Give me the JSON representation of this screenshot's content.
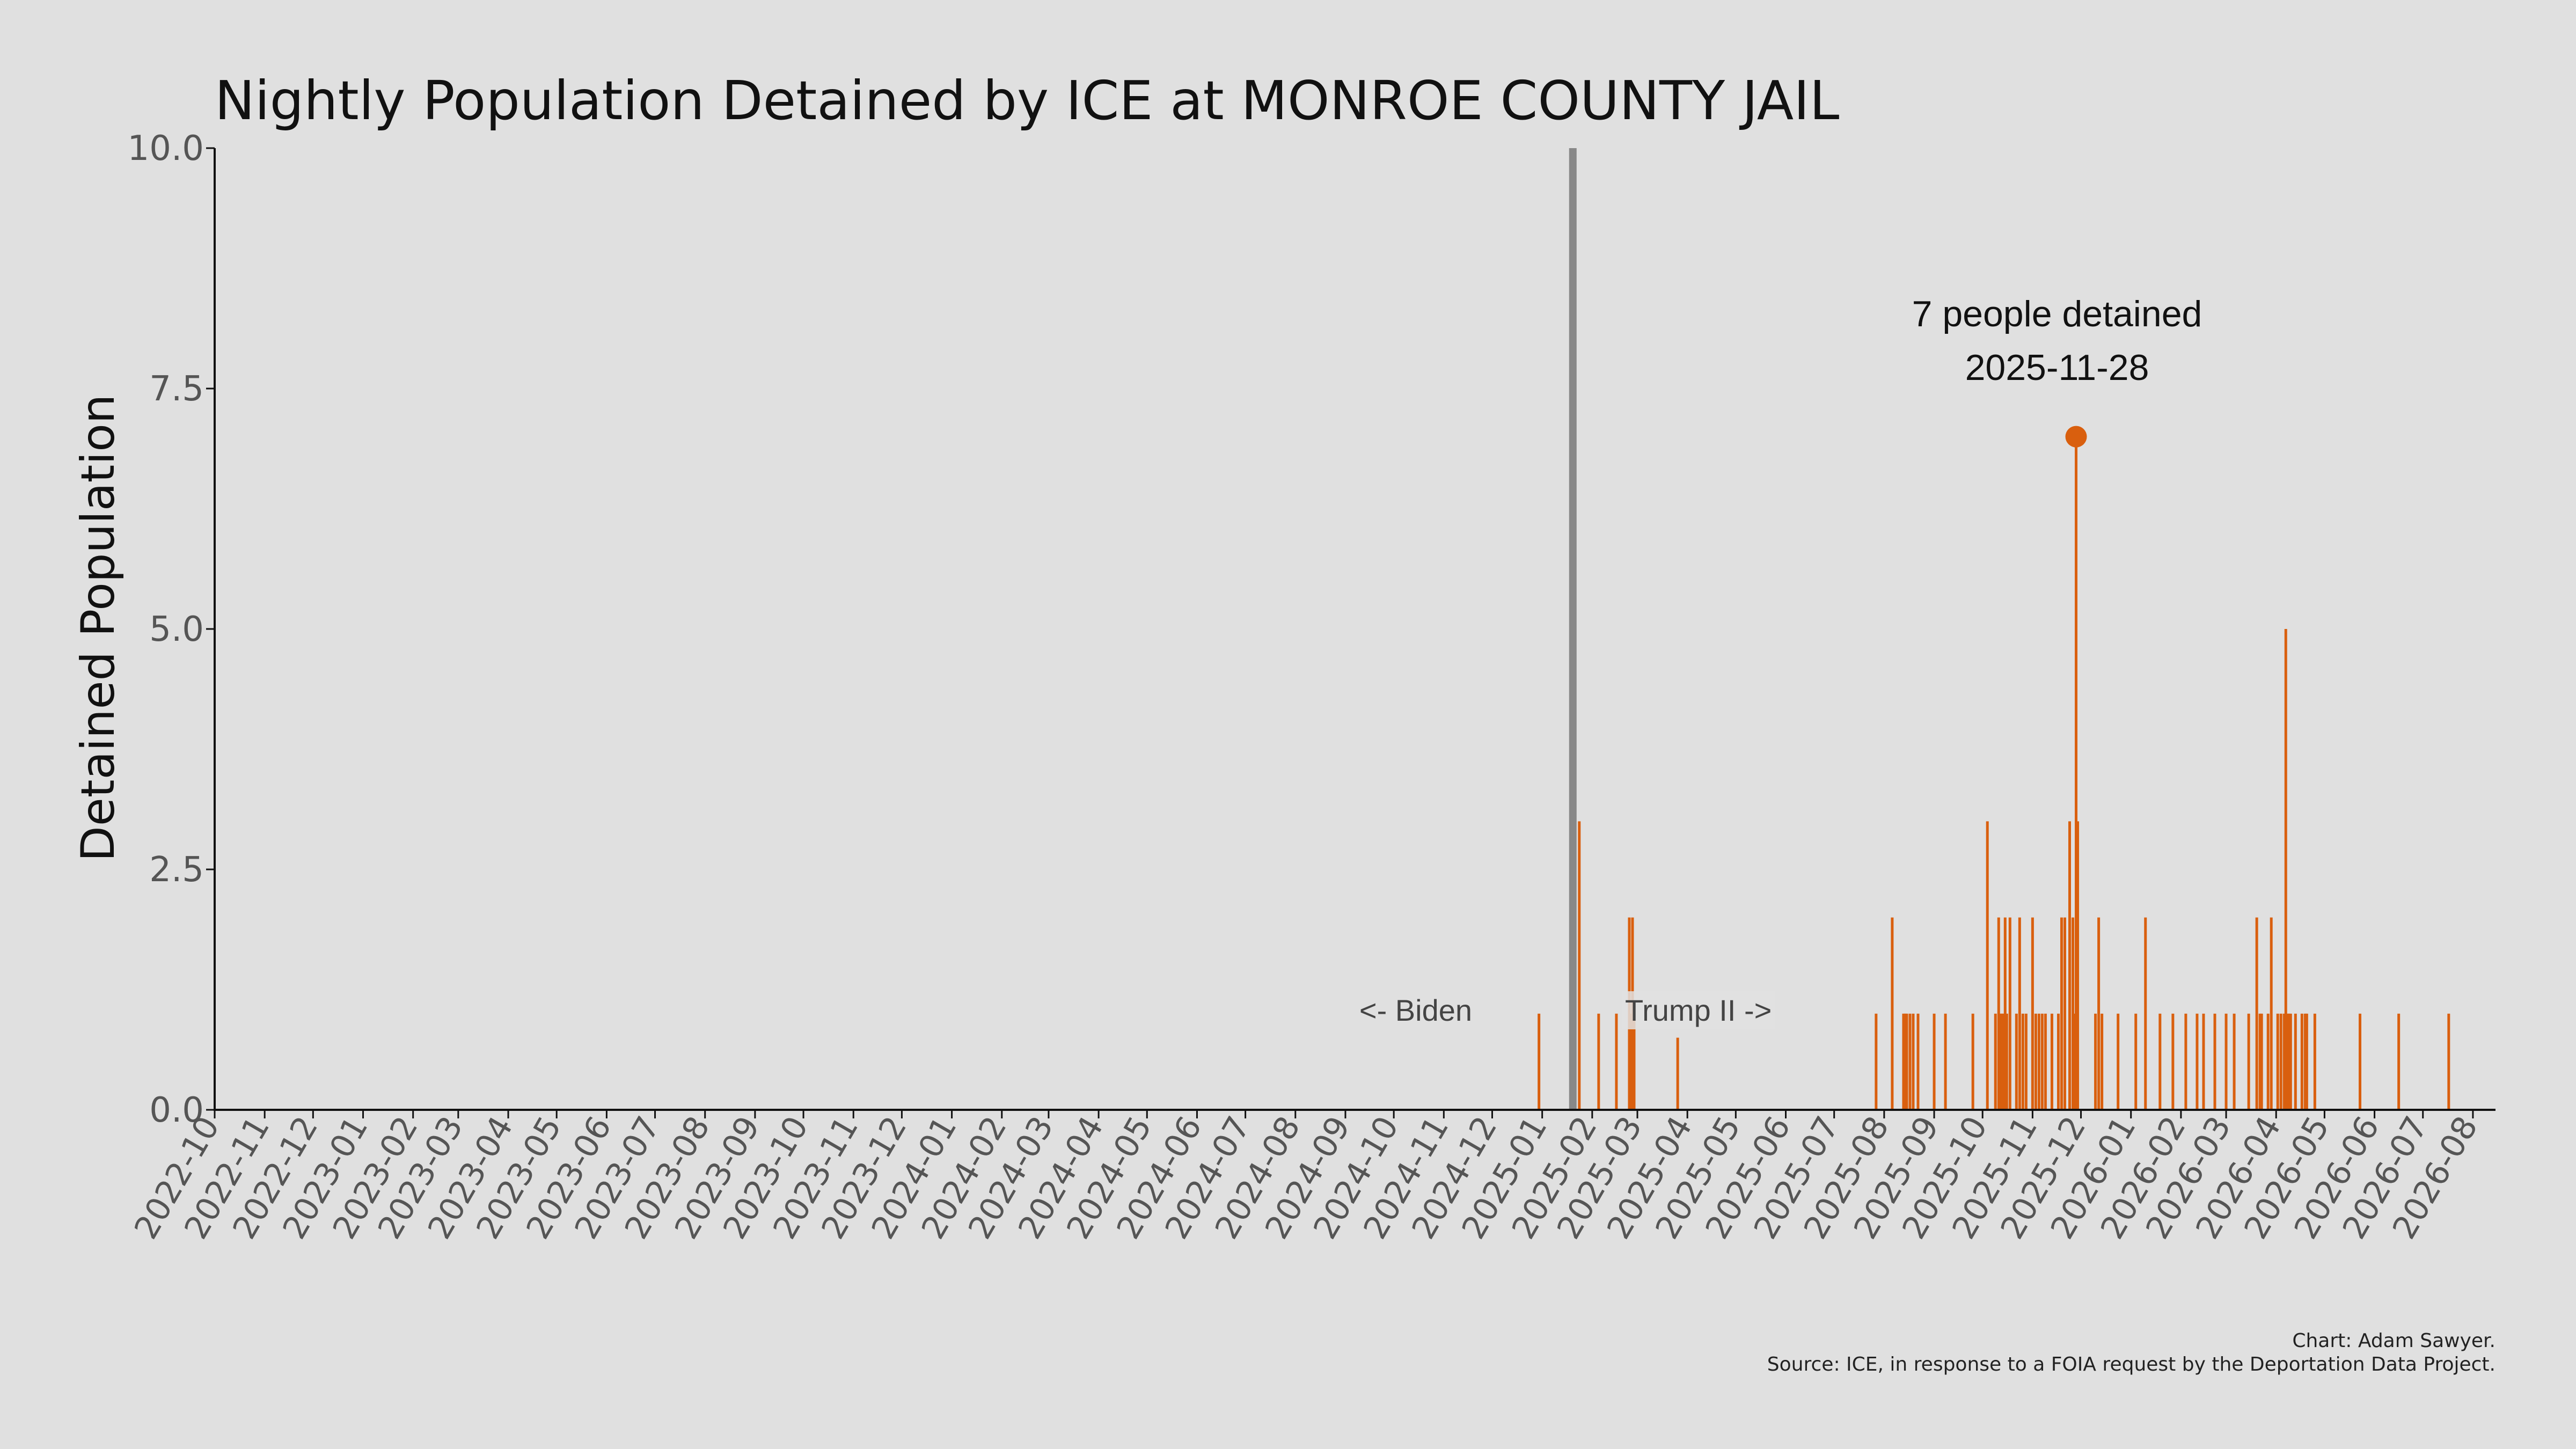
{
  "chart_data": {
    "type": "bar",
    "title": "Nightly Population Detained by ICE at MONROE COUNTY JAIL",
    "ylabel": "Detained Population",
    "xlabel": "",
    "ylim": [
      0,
      10
    ],
    "xlim": [
      "2022-10-01",
      "2026-08-15"
    ],
    "yticks": [
      "0.0",
      "2.5",
      "5.0",
      "7.5",
      "10.0"
    ],
    "xticks": [
      "2022-10",
      "2022-11",
      "2022-12",
      "2023-01",
      "2023-02",
      "2023-03",
      "2023-04",
      "2023-05",
      "2023-06",
      "2023-07",
      "2023-08",
      "2023-09",
      "2023-10",
      "2023-11",
      "2023-12",
      "2024-01",
      "2024-02",
      "2024-03",
      "2024-04",
      "2024-05",
      "2024-06",
      "2024-07",
      "2024-08",
      "2024-09",
      "2024-10",
      "2024-11",
      "2024-12",
      "2025-01",
      "2025-02",
      "2025-03",
      "2025-04",
      "2025-05",
      "2025-06",
      "2025-07",
      "2025-08",
      "2025-09",
      "2025-10",
      "2025-11",
      "2025-12",
      "2026-01",
      "2026-02",
      "2026-03",
      "2026-04",
      "2026-05",
      "2026-06",
      "2026-07",
      "2026-08"
    ],
    "grid": false,
    "bar_color": "#d95f0e",
    "divider": {
      "date": "2025-01-20",
      "color": "#888888"
    },
    "era_labels": {
      "left": "<- Biden",
      "right": "Trump II ->"
    },
    "peak": {
      "date": "2025-11-28",
      "value": 7,
      "label_line1": "7 people detained",
      "label_line2": "2025-11-28"
    },
    "series": [
      {
        "x": [
          "2024-12-30",
          "2025-01-24",
          "2025-02-05",
          "2025-02-16",
          "2025-02-24",
          "2025-02-25",
          "2025-02-26",
          "2025-02-27",
          "2025-03-26",
          "2025-07-27",
          "2025-08-06",
          "2025-08-13",
          "2025-08-14",
          "2025-08-15",
          "2025-08-17",
          "2025-08-19",
          "2025-08-22",
          "2025-09-01",
          "2025-09-08",
          "2025-09-25",
          "2025-10-04",
          "2025-10-09",
          "2025-10-11",
          "2025-10-12",
          "2025-10-13",
          "2025-10-14",
          "2025-10-15",
          "2025-10-16",
          "2025-10-18",
          "2025-10-22",
          "2025-10-24",
          "2025-10-26",
          "2025-10-28",
          "2025-11-01",
          "2025-11-03",
          "2025-11-05",
          "2025-11-07",
          "2025-11-09",
          "2025-11-13",
          "2025-11-17",
          "2025-11-19",
          "2025-11-21",
          "2025-11-24",
          "2025-11-26",
          "2025-11-27",
          "2025-11-28",
          "2025-11-29",
          "2025-12-10",
          "2025-12-12",
          "2025-12-14",
          "2025-12-24",
          "2026-01-04",
          "2026-01-10",
          "2026-01-19",
          "2026-01-27",
          "2026-02-04",
          "2026-02-11",
          "2026-02-15",
          "2026-02-22",
          "2026-02-29",
          "2026-03-06",
          "2026-03-15",
          "2026-03-20",
          "2026-03-22",
          "2026-03-23",
          "2026-03-27",
          "2026-03-29",
          "2026-04-02",
          "2026-04-04",
          "2026-04-06",
          "2026-04-07",
          "2026-04-08",
          "2026-04-09",
          "2026-04-10",
          "2026-04-13",
          "2026-04-17",
          "2026-04-19",
          "2026-04-20",
          "2026-04-25",
          "2026-05-23",
          "2026-06-16",
          "2026-07-17"
        ],
        "values": [
          1,
          3,
          1,
          1,
          2,
          1,
          2,
          1,
          0.75,
          1,
          2,
          1,
          1,
          1,
          1,
          1,
          1,
          1,
          1,
          1,
          3,
          1,
          2,
          1,
          1,
          1,
          2,
          1,
          2,
          1,
          2,
          1,
          1,
          2,
          1,
          1,
          1,
          1,
          1,
          1,
          2,
          2,
          3,
          2,
          1,
          7,
          3,
          1,
          2,
          1,
          1,
          1,
          2,
          1,
          1,
          1,
          1,
          1,
          1,
          1,
          1,
          1,
          2,
          1,
          1,
          1,
          2,
          1,
          1,
          1,
          5,
          1,
          1,
          1,
          1,
          1,
          1,
          1,
          1,
          1,
          1,
          1
        ]
      }
    ]
  },
  "credits": {
    "line1": "Chart: Adam Sawyer.",
    "line2": "Source: ICE, in response to a FOIA request by the Deportation Data Project."
  }
}
